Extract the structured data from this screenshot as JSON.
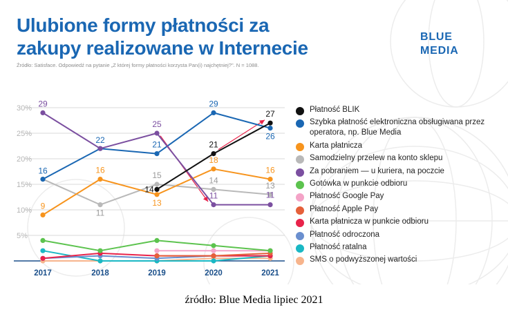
{
  "header": {
    "title_line1": "Ulubione formy płatności za",
    "title_line2": "zakupy realizowane w Internecie",
    "subtitle": "Źródło: Satisface. Odpowiedź na pytanie „Z której formy płatności korzysta Pan(i) najchętniej?\". N = 1088.",
    "brand_line1": "BLUE",
    "brand_line2": "MEDIA"
  },
  "footer": {
    "source": "źródło: Blue Media lipiec 2021"
  },
  "chart_data": {
    "type": "line",
    "x": [
      "2017",
      "2018",
      "2019",
      "2020",
      "2021"
    ],
    "ylim": [
      0,
      30
    ],
    "yticks": [
      "5%",
      "10%",
      "15%",
      "20%",
      "25%",
      "30%"
    ],
    "grid": true,
    "legend_position": "right",
    "series": [
      {
        "name": "Płatność BLIK",
        "color": "#111111",
        "values": [
          null,
          null,
          14,
          21,
          27
        ],
        "labels": [
          null,
          null,
          "14",
          "21",
          "27"
        ]
      },
      {
        "name": "Szybka płatność elektroniczna obsługiwana przez operatora, np. Blue Media",
        "color": "#1a67b3",
        "values": [
          16,
          22,
          21,
          29,
          26
        ],
        "labels": [
          "16",
          "22",
          "21",
          "29",
          "26"
        ]
      },
      {
        "name": "Karta płatnicza",
        "color": "#f7941d",
        "values": [
          9,
          16,
          13,
          18,
          16
        ],
        "labels": [
          "9",
          "16",
          "13",
          "18",
          "16"
        ]
      },
      {
        "name": "Samodzielny przelew na konto sklepu",
        "color": "#b9b9b9",
        "values": [
          16,
          11,
          15,
          14,
          13
        ],
        "labels": [
          null,
          "11",
          "15",
          "14",
          "13"
        ]
      },
      {
        "name": "Za pobraniem — u kuriera, na poczcie",
        "color": "#7b4fa0",
        "values": [
          29,
          22,
          25,
          11,
          11
        ],
        "labels": [
          "29",
          null,
          "25",
          "11",
          "11"
        ]
      },
      {
        "name": "Gotówka w punkcie odbioru",
        "color": "#5cc34e",
        "values": [
          4,
          2,
          4,
          3,
          2
        ],
        "labels": [
          null,
          null,
          null,
          null,
          null
        ]
      },
      {
        "name": "Płatność Google Pay",
        "color": "#f4a3c7",
        "values": [
          null,
          null,
          2,
          2,
          2
        ],
        "labels": [
          null,
          null,
          null,
          null,
          null
        ]
      },
      {
        "name": "Płatność Apple Pay",
        "color": "#e5603a",
        "values": [
          null,
          null,
          1,
          1,
          1.5
        ],
        "labels": [
          null,
          null,
          null,
          null,
          null
        ]
      },
      {
        "name": "Karta płatnicza w punkcie odbioru",
        "color": "#e8234a",
        "values": [
          0.5,
          1.5,
          1,
          1,
          1
        ],
        "labels": [
          null,
          null,
          null,
          null,
          null
        ]
      },
      {
        "name": "Płatność odroczona",
        "color": "#6a8fcf",
        "values": [
          0.5,
          1,
          0.5,
          1,
          1
        ],
        "labels": [
          null,
          null,
          null,
          null,
          null
        ]
      },
      {
        "name": "Płatność ratalna",
        "color": "#1ab8c4",
        "values": [
          2,
          0,
          0,
          0,
          1
        ],
        "labels": [
          null,
          null,
          null,
          null,
          null
        ]
      },
      {
        "name": "SMS o podwyższonej wartości",
        "color": "#f7b48c",
        "values": [
          0,
          0,
          0,
          0.5,
          0.5
        ],
        "labels": [
          null,
          null,
          null,
          null,
          null
        ]
      }
    ]
  }
}
